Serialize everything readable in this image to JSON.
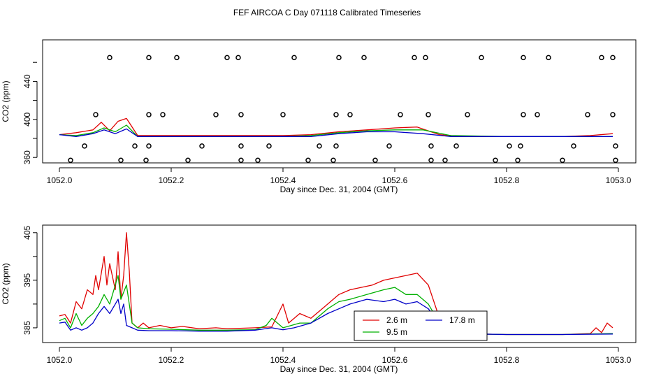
{
  "figure": {
    "title": "FEF AIRCOA C  Day 071118  Calibrated Timeseries"
  },
  "colors": {
    "series_2_6m": "#e00000",
    "series_9_5m": "#00b000",
    "series_17_8m": "#0000c8",
    "axis": "#000000",
    "markers": "#000000"
  },
  "chart_data": [
    {
      "type": "line",
      "title": "",
      "xlabel": "Day since Dec. 31, 2004 (GMT)",
      "ylabel": "CO2 (ppm)",
      "xlim": [
        1052.0,
        1053.0
      ],
      "ylim": [
        355,
        480
      ],
      "xticks": [
        1052.0,
        1052.2,
        1052.4,
        1052.6,
        1052.8,
        1053.0
      ],
      "xtick_labels": [
        "1052.0",
        "1052.2",
        "1052.4",
        "1052.6",
        "1052.8",
        "1053.0"
      ],
      "yticks": [
        360,
        400,
        440
      ],
      "ytick_labels": [
        "360",
        "400",
        "440"
      ],
      "yminor_ticks": [
        380,
        420,
        460
      ],
      "series": [
        {
          "name": "2.6 m",
          "color_key": "series_2_6m",
          "x": [
            1052.0,
            1052.03,
            1052.06,
            1052.075,
            1052.09,
            1052.105,
            1052.12,
            1052.14,
            1052.2,
            1052.3,
            1052.4,
            1052.45,
            1052.5,
            1052.55,
            1052.6,
            1052.64,
            1052.68,
            1052.72,
            1052.8,
            1052.9,
            1052.95,
            1052.99
          ],
          "y": [
            384,
            386,
            389,
            397,
            388,
            398,
            401,
            383,
            383,
            383,
            383,
            384,
            387,
            389,
            391,
            392,
            384,
            382,
            382,
            382,
            383,
            385
          ]
        },
        {
          "name": "9.5 m",
          "color_key": "series_9_5m",
          "x": [
            1052.0,
            1052.03,
            1052.06,
            1052.08,
            1052.1,
            1052.12,
            1052.14,
            1052.2,
            1052.3,
            1052.4,
            1052.45,
            1052.5,
            1052.55,
            1052.6,
            1052.65,
            1052.7,
            1052.8,
            1052.9,
            1052.99
          ],
          "y": [
            384,
            383,
            386,
            391,
            387,
            394,
            382,
            382,
            382,
            382,
            383,
            386,
            388,
            389,
            389,
            383,
            382,
            382,
            382
          ]
        },
        {
          "name": "17.8 m",
          "color_key": "series_17_8m",
          "x": [
            1052.0,
            1052.03,
            1052.06,
            1052.08,
            1052.1,
            1052.12,
            1052.14,
            1052.2,
            1052.3,
            1052.4,
            1052.45,
            1052.5,
            1052.55,
            1052.6,
            1052.65,
            1052.7,
            1052.8,
            1052.9,
            1052.99
          ],
          "y": [
            384,
            382,
            385,
            389,
            385,
            390,
            382,
            382,
            382,
            382,
            382,
            385,
            387,
            387,
            385,
            382,
            382,
            382,
            382
          ]
        }
      ],
      "markers": {
        "symbol": "open-circle",
        "points": [
          [
            1052.09,
            465
          ],
          [
            1052.16,
            465
          ],
          [
            1052.21,
            465
          ],
          [
            1052.3,
            465
          ],
          [
            1052.32,
            465
          ],
          [
            1052.42,
            465
          ],
          [
            1052.5,
            465
          ],
          [
            1052.545,
            465
          ],
          [
            1052.635,
            465
          ],
          [
            1052.655,
            465
          ],
          [
            1052.755,
            465
          ],
          [
            1052.83,
            465
          ],
          [
            1052.875,
            465
          ],
          [
            1052.97,
            465
          ],
          [
            1052.99,
            465
          ],
          [
            1052.065,
            405
          ],
          [
            1052.16,
            405
          ],
          [
            1052.185,
            405
          ],
          [
            1052.28,
            405
          ],
          [
            1052.325,
            405
          ],
          [
            1052.4,
            405
          ],
          [
            1052.495,
            405
          ],
          [
            1052.52,
            405
          ],
          [
            1052.61,
            405
          ],
          [
            1052.66,
            405
          ],
          [
            1052.73,
            405
          ],
          [
            1052.83,
            405
          ],
          [
            1052.855,
            405
          ],
          [
            1052.945,
            405
          ],
          [
            1052.99,
            405
          ],
          [
            1052.045,
            372
          ],
          [
            1052.135,
            372
          ],
          [
            1052.16,
            372
          ],
          [
            1052.255,
            372
          ],
          [
            1052.325,
            372
          ],
          [
            1052.375,
            372
          ],
          [
            1052.465,
            372
          ],
          [
            1052.495,
            372
          ],
          [
            1052.59,
            372
          ],
          [
            1052.665,
            372
          ],
          [
            1052.71,
            372
          ],
          [
            1052.805,
            372
          ],
          [
            1052.825,
            372
          ],
          [
            1052.92,
            372
          ],
          [
            1052.995,
            372
          ],
          [
            1052.02,
            357
          ],
          [
            1052.11,
            357
          ],
          [
            1052.155,
            357
          ],
          [
            1052.23,
            357
          ],
          [
            1052.325,
            357
          ],
          [
            1052.355,
            357
          ],
          [
            1052.445,
            357
          ],
          [
            1052.49,
            357
          ],
          [
            1052.565,
            357
          ],
          [
            1052.665,
            357
          ],
          [
            1052.69,
            357
          ],
          [
            1052.78,
            357
          ],
          [
            1052.82,
            357
          ],
          [
            1052.9,
            357
          ],
          [
            1052.995,
            357
          ]
        ]
      }
    },
    {
      "type": "line",
      "title": "",
      "xlabel": "Day since Dec. 31, 2004 (GMT)",
      "ylabel": "CO2 (ppm)",
      "xlim": [
        1052.0,
        1053.0
      ],
      "ylim": [
        382.2,
        406
      ],
      "xticks": [
        1052.0,
        1052.2,
        1052.4,
        1052.6,
        1052.8,
        1053.0
      ],
      "xtick_labels": [
        "1052.0",
        "1052.2",
        "1052.4",
        "1052.6",
        "1052.8",
        "1053.0"
      ],
      "yticks": [
        385,
        395,
        405
      ],
      "ytick_labels": [
        "385",
        "395",
        "405"
      ],
      "yminor_ticks": [
        390,
        400
      ],
      "series": [
        {
          "name": "2.6 m",
          "color_key": "series_2_6m",
          "x": [
            1052.0,
            1052.01,
            1052.02,
            1052.03,
            1052.04,
            1052.05,
            1052.06,
            1052.065,
            1052.07,
            1052.08,
            1052.085,
            1052.09,
            1052.1,
            1052.105,
            1052.11,
            1052.115,
            1052.12,
            1052.125,
            1052.13,
            1052.14,
            1052.15,
            1052.16,
            1052.18,
            1052.2,
            1052.22,
            1052.25,
            1052.28,
            1052.3,
            1052.35,
            1052.38,
            1052.4,
            1052.41,
            1052.43,
            1052.45,
            1052.47,
            1052.5,
            1052.52,
            1052.54,
            1052.56,
            1052.58,
            1052.6,
            1052.62,
            1052.64,
            1052.66,
            1052.68,
            1052.7,
            1052.72,
            1052.75,
            1052.8,
            1052.85,
            1052.9,
            1052.95,
            1052.96,
            1052.97,
            1052.98,
            1052.99
          ],
          "y": [
            387.5,
            387.8,
            386,
            390.5,
            389,
            393,
            392,
            396,
            393,
            400,
            394,
            398.5,
            393,
            401,
            391,
            396,
            405,
            397,
            386,
            385,
            386,
            385,
            385.5,
            385,
            385.3,
            384.8,
            385,
            384.8,
            385,
            385.2,
            390,
            386,
            388,
            387,
            389,
            392,
            393,
            393.5,
            394,
            395,
            395.5,
            396,
            396.5,
            394,
            387,
            386,
            384,
            383.7,
            383.6,
            383.6,
            383.6,
            383.8,
            385,
            384,
            386,
            385
          ]
        },
        {
          "name": "9.5 m",
          "color_key": "series_9_5m",
          "x": [
            1052.0,
            1052.01,
            1052.02,
            1052.03,
            1052.04,
            1052.05,
            1052.06,
            1052.07,
            1052.08,
            1052.09,
            1052.1,
            1052.105,
            1052.11,
            1052.12,
            1052.13,
            1052.14,
            1052.16,
            1052.2,
            1052.25,
            1052.3,
            1052.35,
            1052.37,
            1052.38,
            1052.4,
            1052.43,
            1052.45,
            1052.48,
            1052.5,
            1052.52,
            1052.55,
            1052.58,
            1052.6,
            1052.62,
            1052.64,
            1052.66,
            1052.68,
            1052.7,
            1052.72,
            1052.75,
            1052.8,
            1052.9,
            1052.99
          ],
          "y": [
            386.5,
            387,
            385,
            388,
            385.5,
            387,
            388,
            389.5,
            392,
            390,
            394,
            396,
            391,
            394,
            386,
            385,
            384.8,
            384.7,
            384.5,
            384.5,
            384.6,
            385.5,
            387,
            385,
            386,
            386,
            389,
            390.5,
            391,
            392,
            393,
            393.5,
            392,
            392,
            390,
            386,
            386.5,
            384,
            383.7,
            383.6,
            383.6,
            383.8
          ]
        },
        {
          "name": "17.8 m",
          "color_key": "series_17_8m",
          "x": [
            1052.0,
            1052.01,
            1052.02,
            1052.03,
            1052.04,
            1052.05,
            1052.06,
            1052.07,
            1052.08,
            1052.09,
            1052.1,
            1052.105,
            1052.11,
            1052.115,
            1052.12,
            1052.13,
            1052.14,
            1052.16,
            1052.2,
            1052.25,
            1052.3,
            1052.35,
            1052.38,
            1052.4,
            1052.42,
            1052.45,
            1052.48,
            1052.5,
            1052.52,
            1052.55,
            1052.58,
            1052.6,
            1052.62,
            1052.64,
            1052.66,
            1052.68,
            1052.7,
            1052.72,
            1052.75,
            1052.8,
            1052.9,
            1052.99
          ],
          "y": [
            386,
            386.2,
            384.5,
            385,
            384.5,
            385,
            386,
            388,
            389.5,
            388,
            390,
            391,
            388,
            390,
            385.5,
            385,
            384.5,
            384.4,
            384.4,
            384.3,
            384.3,
            384.5,
            385,
            384.6,
            385,
            386,
            388,
            389,
            390,
            391,
            390.5,
            391,
            390,
            390.5,
            389,
            386,
            386,
            384,
            383.7,
            383.6,
            383.6,
            383.7
          ]
        }
      ],
      "legend": {
        "placement": "bottom-center",
        "entries": [
          "2.6 m",
          "9.5 m",
          "17.8 m"
        ]
      }
    }
  ]
}
